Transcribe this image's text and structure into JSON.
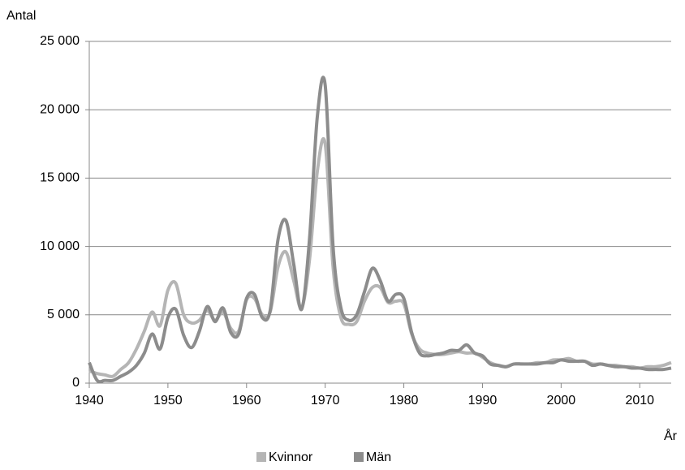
{
  "chart_data": {
    "type": "line",
    "y_label": "Antal",
    "x_label": "År",
    "x": [
      1940,
      1941,
      1942,
      1943,
      1944,
      1945,
      1946,
      1947,
      1948,
      1949,
      1950,
      1951,
      1952,
      1953,
      1954,
      1955,
      1956,
      1957,
      1958,
      1959,
      1960,
      1961,
      1962,
      1963,
      1964,
      1965,
      1966,
      1967,
      1968,
      1969,
      1970,
      1971,
      1972,
      1973,
      1974,
      1975,
      1976,
      1977,
      1978,
      1979,
      1980,
      1981,
      1982,
      1983,
      1984,
      1985,
      1986,
      1987,
      1988,
      1989,
      1990,
      1991,
      1992,
      1993,
      1994,
      1995,
      1996,
      1997,
      1998,
      1999,
      2000,
      2001,
      2002,
      2003,
      2004,
      2005,
      2006,
      2007,
      2008,
      2009,
      2010,
      2011,
      2012,
      2013,
      2014
    ],
    "series": [
      {
        "name": "Kvinnor",
        "color": "#b5b5b5",
        "values": [
          900,
          700,
          600,
          500,
          1000,
          1500,
          2500,
          3800,
          5200,
          4200,
          6800,
          7300,
          5000,
          4400,
          4600,
          5300,
          4600,
          5200,
          4000,
          3800,
          6100,
          6200,
          5000,
          5200,
          8500,
          9600,
          7500,
          5500,
          9000,
          15500,
          17500,
          8500,
          4800,
          4300,
          4500,
          6000,
          7000,
          7000,
          5900,
          6000,
          5800,
          3600,
          2500,
          2200,
          2100,
          2100,
          2200,
          2300,
          2200,
          2200,
          1900,
          1500,
          1300,
          1200,
          1400,
          1400,
          1400,
          1500,
          1500,
          1700,
          1700,
          1800,
          1600,
          1600,
          1400,
          1400,
          1300,
          1300,
          1200,
          1200,
          1100,
          1200,
          1200,
          1300,
          1500
        ]
      },
      {
        "name": "Män",
        "color": "#8c8c8c",
        "values": [
          1500,
          200,
          200,
          200,
          500,
          800,
          1300,
          2200,
          3600,
          2500,
          4800,
          5400,
          3500,
          2600,
          3800,
          5600,
          4500,
          5500,
          3700,
          3600,
          6200,
          6500,
          4800,
          5300,
          10500,
          11900,
          8700,
          5400,
          10500,
          19500,
          21800,
          10000,
          5500,
          4600,
          5000,
          6700,
          8400,
          7500,
          6000,
          6500,
          6200,
          3700,
          2200,
          2000,
          2100,
          2200,
          2400,
          2400,
          2800,
          2200,
          2000,
          1400,
          1300,
          1200,
          1400,
          1400,
          1400,
          1400,
          1500,
          1500,
          1700,
          1600,
          1600,
          1600,
          1300,
          1400,
          1300,
          1200,
          1200,
          1100,
          1100,
          1000,
          1000,
          1000,
          1100
        ]
      }
    ],
    "xlim": [
      1940,
      2014
    ],
    "xticks": [
      1940,
      1950,
      1960,
      1970,
      1980,
      1990,
      2000,
      2010
    ],
    "ylim": [
      0,
      25000
    ],
    "yticks": [
      0,
      {
        "value": 5000,
        "label": "5 000"
      },
      {
        "value": 10000,
        "label": "10 000"
      },
      {
        "value": 15000,
        "label": "15 000"
      },
      {
        "value": 20000,
        "label": "20 000"
      },
      {
        "value": 25000,
        "label": "25 000"
      }
    ],
    "grid": true,
    "legend": "bottom"
  }
}
